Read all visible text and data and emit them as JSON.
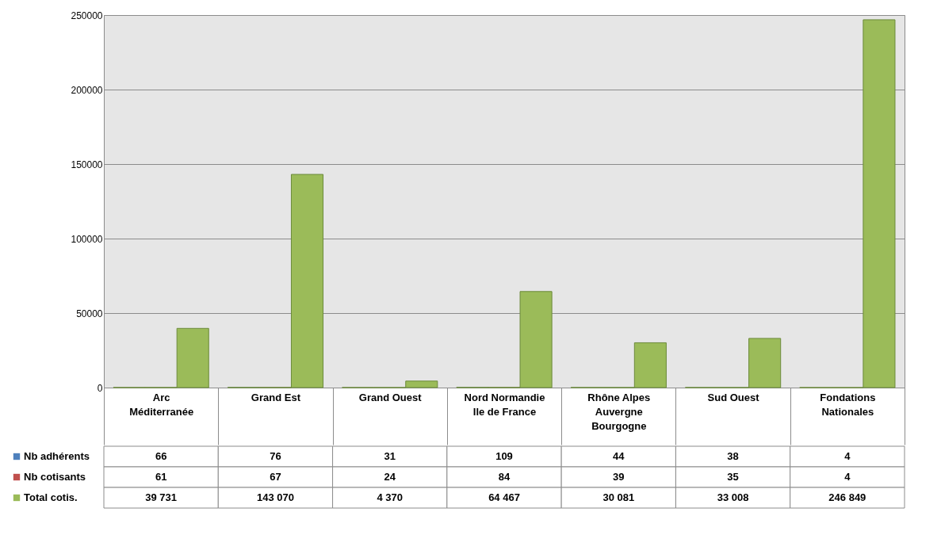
{
  "chart_data": {
    "type": "bar",
    "categories": [
      "Arc Méditerranée",
      "Grand Est",
      "Grand Ouest",
      "Nord Normandie Ile de France",
      "Rhône Alpes Auvergne Bourgogne",
      "Sud Ouest",
      "Fondations Nationales"
    ],
    "series": [
      {
        "name": "Nb adhérents",
        "color": "#4f81bd",
        "values": [
          66,
          76,
          31,
          109,
          44,
          38,
          4
        ],
        "value_labels": [
          "66",
          "76",
          "31",
          "109",
          "44",
          "38",
          "4"
        ]
      },
      {
        "name": "Nb cotisants",
        "color": "#c0504d",
        "values": [
          61,
          67,
          24,
          84,
          39,
          35,
          4
        ],
        "value_labels": [
          "61",
          "67",
          "24",
          "84",
          "39",
          "35",
          "4"
        ]
      },
      {
        "name": "Total cotis.",
        "color": "#9bbb59",
        "values": [
          39731,
          143070,
          4370,
          64467,
          30081,
          33008,
          246849
        ],
        "value_labels": [
          "39 731",
          "143 070",
          "4 370",
          "64 467",
          "30 081",
          "33 008",
          "246 849"
        ]
      }
    ],
    "ylim": [
      0,
      250000
    ],
    "yticks": [
      0,
      50000,
      100000,
      150000,
      200000,
      250000
    ],
    "grid": "y",
    "legend": "bottom left"
  }
}
